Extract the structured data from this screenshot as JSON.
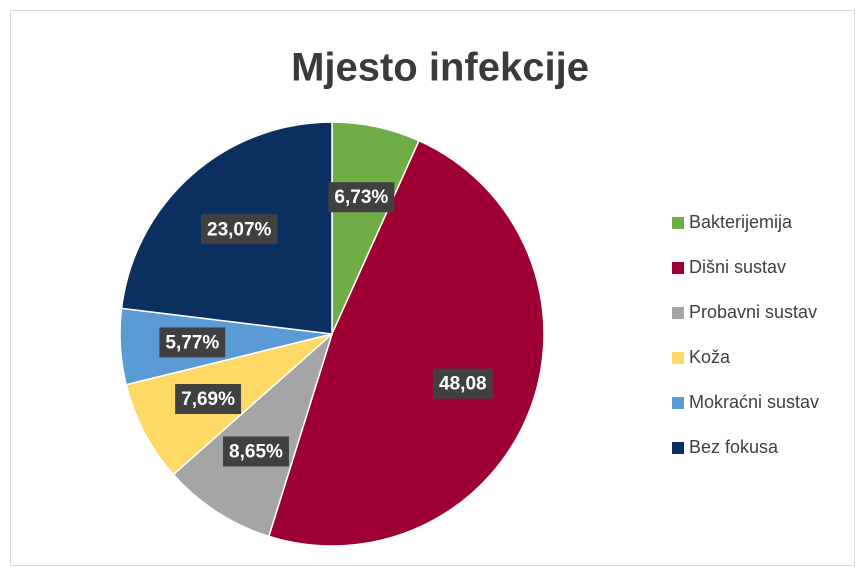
{
  "chart_data": {
    "type": "pie",
    "title": "Mjesto infekcije",
    "categories": [
      "Bakterijemija",
      "Dišni sustav",
      "Probavni sustav",
      "Koža",
      "Mokraćni sustav",
      "Bez fokusa"
    ],
    "values": [
      6.73,
      48.08,
      8.65,
      7.69,
      5.77,
      23.07
    ],
    "value_labels": [
      "6,73%",
      "48,08",
      "8,65%",
      "7,69%",
      "5,77%",
      "23,07%"
    ],
    "colors": [
      "#70ad47",
      "#9e0034",
      "#a5a5a5",
      "#ffd966",
      "#5b9bd5",
      "#0b2f5f"
    ],
    "legend": "right"
  }
}
